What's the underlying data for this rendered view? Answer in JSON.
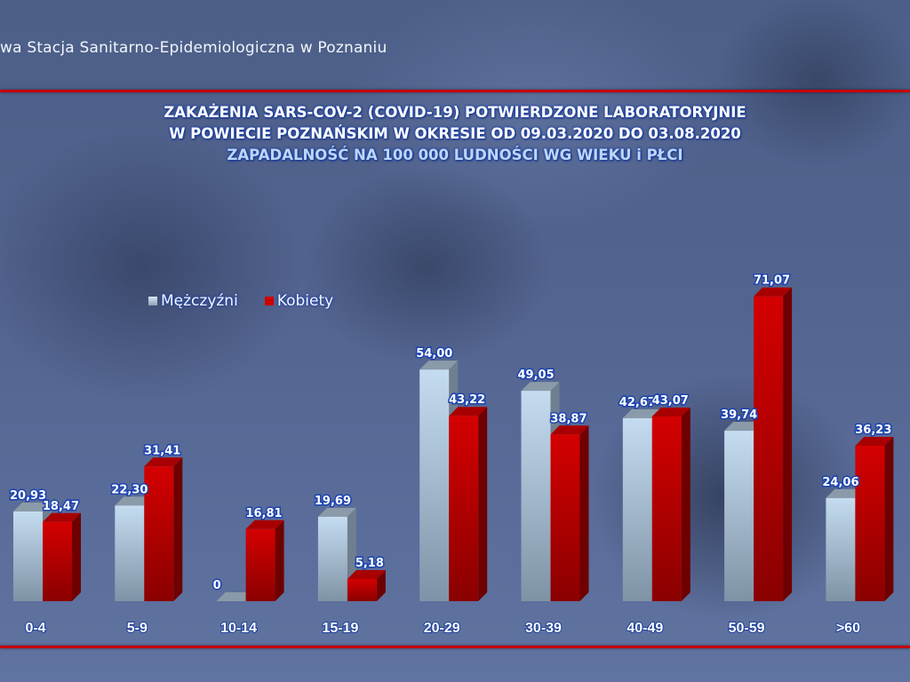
{
  "header": {
    "organization": "wa Stacja Sanitarno-Epidemiologiczna w Poznaniu"
  },
  "title": {
    "line1": "ZAKAŻENIA SARS-COV-2 (COVID-19) POTWIERDZONE LABORATORYJNIE",
    "line2": "W POWIECIE POZNAŃSKIM W OKRESIE OD 09.03.2020 DO 03.08.2020",
    "line3": "ZAPADALNOŚĆ NA 100 000 LUDNOŚCI WG WIEKU i PŁCI"
  },
  "legend": {
    "men": "Mężczyźni",
    "women": "Kobiety"
  },
  "colors": {
    "men": "#b9d3ea",
    "women": "#cc0000",
    "rule": "#c8000a",
    "label_outline": "#1d44b0"
  },
  "chart_data": {
    "type": "bar",
    "title": "ZAKAŻENIA SARS-COV-2 (COVID-19) POTWIERDZONE LABORATORYJNIE W POWIECIE POZNAŃSKIM W OKRESIE OD 09.03.2020 DO 03.08.2020 — ZAPADALNOŚĆ NA 100 000 LUDNOŚCI WG WIEKU i PŁCI",
    "xlabel": "",
    "ylabel": "",
    "categories": [
      "0-4",
      "5-9",
      "10-14",
      "15-19",
      "20-29",
      "30-39",
      "40-49",
      "50-59",
      ">60"
    ],
    "series": [
      {
        "name": "Mężczyźni",
        "values": [
          20.93,
          22.3,
          0,
          19.69,
          54.0,
          49.05,
          42.67,
          39.74,
          24.06
        ],
        "labels": [
          "20,93",
          "22,30",
          "0",
          "19,69",
          "54,00",
          "49,05",
          "42,67",
          "39,74",
          "24,06"
        ]
      },
      {
        "name": "Kobiety",
        "values": [
          18.47,
          31.41,
          16.81,
          5.18,
          43.22,
          38.87,
          43.07,
          71.07,
          36.23
        ],
        "labels": [
          "18,47",
          "31,41",
          "16,81",
          "5,18",
          "43,22",
          "38,87",
          "43,07",
          "71,07",
          "36,23"
        ]
      }
    ],
    "ylim": [
      0,
      75
    ],
    "grid": false,
    "legend_position": "top-left",
    "style": "3d-clustered-column"
  }
}
